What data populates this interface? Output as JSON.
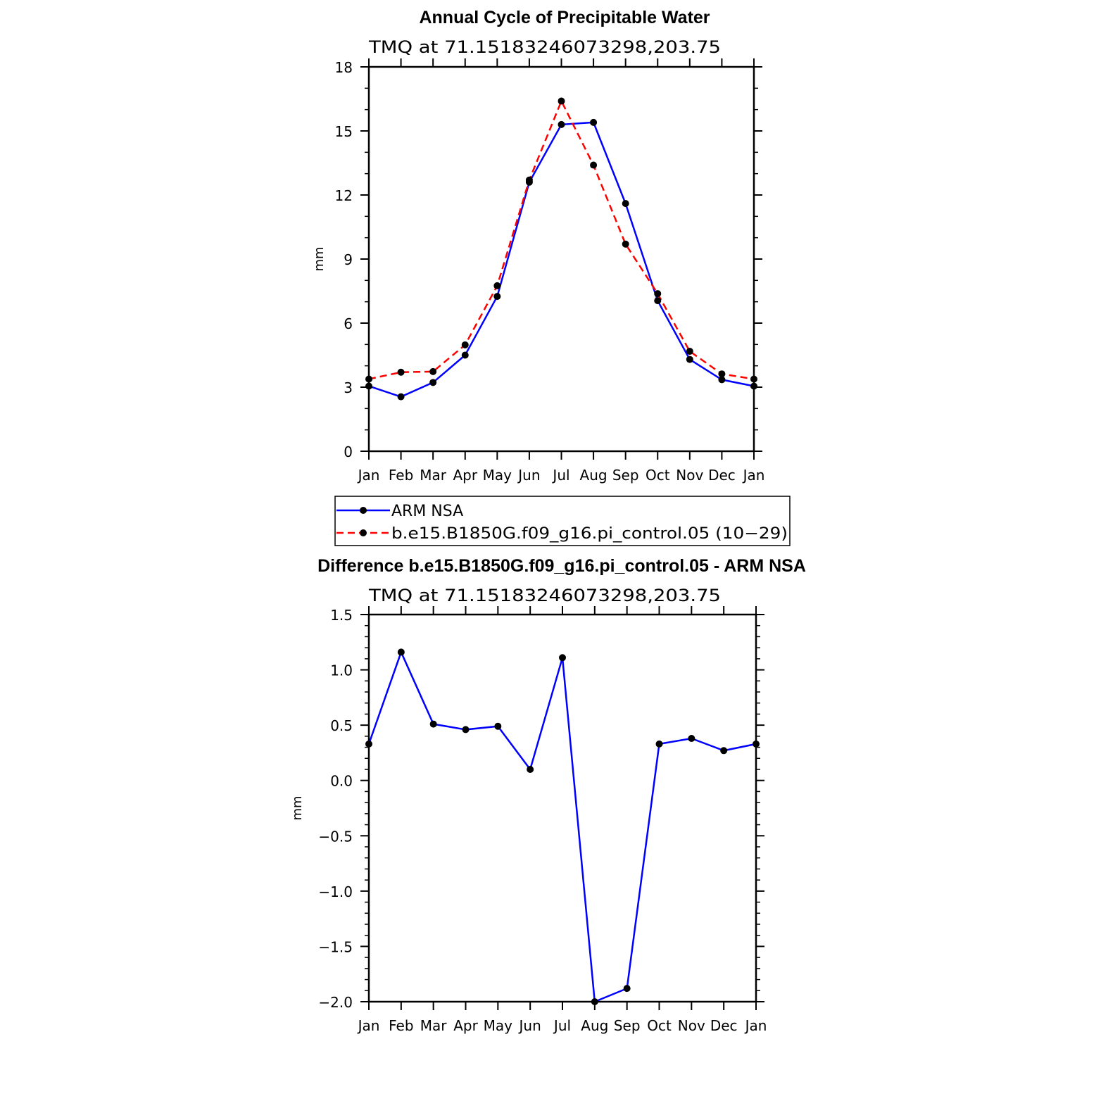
{
  "chart_data": [
    {
      "type": "line",
      "title": "Annual Cycle of Precipitable Water",
      "subtitle": "TMQ at 71.15183246073298,203.75",
      "ylabel": "mm",
      "ylim": [
        0,
        18
      ],
      "yticks": [
        "0",
        "3",
        "6",
        "9",
        "12",
        "15",
        "18"
      ],
      "categories": [
        "Jan",
        "Feb",
        "Mar",
        "Apr",
        "May",
        "Jun",
        "Jul",
        "Aug",
        "Sep",
        "Oct",
        "Nov",
        "Dec",
        "Jan"
      ],
      "series": [
        {
          "name": "ARM NSA",
          "color": "#0000ff",
          "dash": "solid",
          "values": [
            3.05,
            2.55,
            3.22,
            4.5,
            7.25,
            12.6,
            15.3,
            15.4,
            11.6,
            7.05,
            4.3,
            3.35,
            3.05
          ]
        },
        {
          "name": "b.e15.B1850G.f09_g16.pi_control.05 (10-29)",
          "color": "#ff0000",
          "dash": "dashed",
          "values": [
            3.38,
            3.7,
            3.73,
            4.98,
            7.75,
            12.7,
            16.4,
            13.4,
            9.7,
            7.38,
            4.68,
            3.62,
            3.38
          ]
        }
      ],
      "legend": {
        "position": "below",
        "entries": [
          "ARM NSA",
          "b.e15.B1850G.f09_g16.pi_control.05 (10−29)"
        ]
      }
    },
    {
      "type": "line",
      "title": "Difference b.e15.B1850G.f09_g16.pi_control.05 - ARM NSA",
      "subtitle": "TMQ at 71.15183246073298,203.75",
      "ylabel": "mm",
      "ylim": [
        -2.0,
        1.5
      ],
      "yticks": [
        "−2.0",
        "−1.5",
        "−1.0",
        "−0.5",
        "0.0",
        "0.5",
        "1.0",
        "1.5"
      ],
      "categories": [
        "Jan",
        "Feb",
        "Mar",
        "Apr",
        "May",
        "Jun",
        "Jul",
        "Aug",
        "Sep",
        "Oct",
        "Nov",
        "Dec",
        "Jan"
      ],
      "series": [
        {
          "color": "#0000ff",
          "dash": "solid",
          "values": [
            0.33,
            1.16,
            0.51,
            0.46,
            0.49,
            0.1,
            1.11,
            -2.0,
            -1.88,
            0.33,
            0.38,
            0.27,
            0.33
          ]
        }
      ]
    }
  ]
}
